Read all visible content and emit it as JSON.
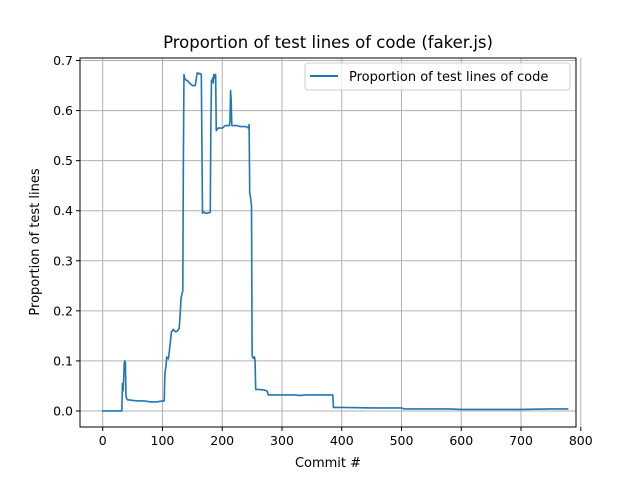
{
  "chart_data": {
    "type": "line",
    "title": "Proportion of test lines of code (faker.js)",
    "xlabel": "Commit #",
    "ylabel": "Proportion of test lines",
    "xlim": [
      -38,
      792
    ],
    "ylim": [
      -0.032,
      0.705
    ],
    "x_ticks": [
      0,
      100,
      200,
      300,
      400,
      500,
      600,
      700,
      800
    ],
    "y_ticks": [
      0.0,
      0.1,
      0.2,
      0.3,
      0.4,
      0.5,
      0.6,
      0.7
    ],
    "x_tick_labels": [
      "0",
      "100",
      "200",
      "300",
      "400",
      "500",
      "600",
      "700",
      "800"
    ],
    "y_tick_labels": [
      "0.0",
      "0.1",
      "0.2",
      "0.3",
      "0.4",
      "0.5",
      "0.6",
      "0.7"
    ],
    "grid": true,
    "legend": {
      "position": "top-right",
      "entries": [
        "Proportion of test lines of code"
      ]
    },
    "colors": {
      "series": "#1f77b4",
      "grid": "#b0b0b0",
      "axes": "#000000",
      "legend_border": "#cccccc"
    },
    "series": [
      {
        "name": "Proportion of test lines of code",
        "x": [
          0,
          32,
          33,
          34,
          35,
          36,
          37,
          38,
          39,
          40,
          42,
          45,
          50,
          60,
          70,
          80,
          90,
          100,
          103,
          104,
          106,
          107,
          110,
          112,
          115,
          118,
          120,
          122,
          125,
          128,
          130,
          131,
          133,
          134,
          135,
          136,
          137,
          140,
          142,
          145,
          150,
          155,
          158,
          160,
          161,
          163,
          165,
          167,
          168,
          170,
          172,
          175,
          180,
          181,
          182,
          183,
          184,
          185,
          186,
          187,
          188,
          189,
          190,
          193,
          195,
          200,
          205,
          210,
          212,
          213,
          214,
          215,
          216,
          217,
          218,
          220,
          225,
          230,
          235,
          240,
          244,
          245,
          246,
          247,
          248,
          249,
          250,
          252,
          254,
          255,
          256,
          257,
          260,
          270,
          275,
          277,
          280,
          300,
          320,
          330,
          340,
          360,
          380,
          385,
          386,
          400,
          450,
          500,
          505,
          550,
          580,
          600,
          650,
          700,
          750,
          778
        ],
        "values": [
          0.0,
          0.0,
          0.055,
          0.04,
          0.06,
          0.095,
          0.1,
          0.095,
          0.03,
          0.025,
          0.022,
          0.022,
          0.021,
          0.02,
          0.02,
          0.018,
          0.018,
          0.02,
          0.02,
          0.075,
          0.09,
          0.108,
          0.104,
          0.125,
          0.158,
          0.163,
          0.16,
          0.158,
          0.16,
          0.165,
          0.2,
          0.225,
          0.235,
          0.24,
          0.5,
          0.672,
          0.665,
          0.66,
          0.66,
          0.655,
          0.65,
          0.65,
          0.675,
          0.675,
          0.673,
          0.674,
          0.672,
          0.395,
          0.397,
          0.397,
          0.395,
          0.395,
          0.397,
          0.57,
          0.66,
          0.66,
          0.665,
          0.655,
          0.672,
          0.672,
          0.665,
          0.672,
          0.56,
          0.565,
          0.565,
          0.565,
          0.57,
          0.57,
          0.57,
          0.58,
          0.64,
          0.62,
          0.57,
          0.57,
          0.57,
          0.57,
          0.57,
          0.568,
          0.568,
          0.568,
          0.565,
          0.572,
          0.435,
          0.43,
          0.42,
          0.41,
          0.11,
          0.105,
          0.108,
          0.1,
          0.043,
          0.043,
          0.043,
          0.042,
          0.04,
          0.032,
          0.032,
          0.032,
          0.032,
          0.031,
          0.032,
          0.032,
          0.032,
          0.032,
          0.007,
          0.007,
          0.006,
          0.006,
          0.004,
          0.004,
          0.004,
          0.003,
          0.003,
          0.003,
          0.004,
          0.004
        ]
      }
    ]
  }
}
